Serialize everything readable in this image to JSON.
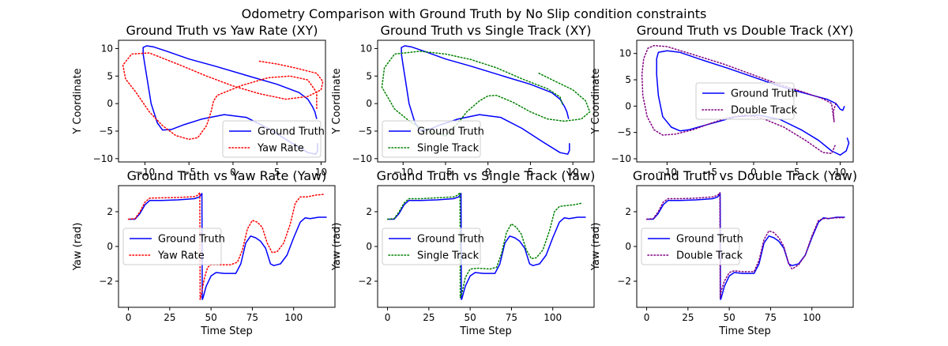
{
  "figure": {
    "title": "Odometry Comparison with Ground Truth by No Slip condition constraints"
  },
  "chart_data": [
    {
      "type": "line",
      "title": "Ground Truth vs Yaw Rate (XY)",
      "xlabel": "",
      "ylabel": "Y Coordinate",
      "xlim": [
        -13,
        10.5
      ],
      "ylim": [
        -10.6,
        11.5
      ],
      "xticks": [
        -10,
        -5,
        0,
        5,
        10
      ],
      "yticks": [
        -10,
        -5,
        0,
        5,
        10
      ],
      "legend_position": "lower-right",
      "series": [
        {
          "name": "Ground Truth",
          "color": "#0000ff",
          "style": "solid",
          "x": [
            9.5,
            9.3,
            9.0,
            8.5,
            7.5,
            5.0,
            2.0,
            -2.0,
            -5.0,
            -7.5,
            -9.0,
            -9.8,
            -10.2,
            -10.2,
            -10.0,
            -9.7,
            -9.3,
            -8.6,
            -8.0,
            -7.0,
            -5.5,
            -3.5,
            -1.0,
            1.5,
            4.0,
            6.5,
            8.5,
            9.4,
            9.6,
            9.6
          ],
          "y": [
            -2.8,
            -1.5,
            -0.5,
            0.8,
            2.0,
            3.5,
            4.9,
            6.8,
            8.1,
            9.5,
            10.3,
            10.5,
            10.2,
            9.0,
            7.0,
            4.0,
            0.0,
            -3.5,
            -4.8,
            -4.7,
            -3.8,
            -2.8,
            -2.0,
            -2.5,
            -4.5,
            -7.0,
            -8.9,
            -9.2,
            -8.5,
            -7.2
          ]
        },
        {
          "name": "Yaw Rate",
          "color": "#ff0000",
          "style": "dotted",
          "x": [
            3.0,
            5.0,
            7.0,
            9.5,
            10.2,
            10.0,
            8.5,
            6.0,
            3.0,
            0.0,
            -3.0,
            -6.0,
            -9.5,
            -11.5,
            -12.5,
            -12.2,
            -11.0,
            -9.5,
            -8.0,
            -6.5,
            -5.0,
            -4.0,
            -3.0,
            -2.5,
            -2.2,
            -1.8,
            1.0,
            4.0,
            6.5,
            8.5,
            9.5,
            9.5
          ],
          "y": [
            7.7,
            7.2,
            6.5,
            5.5,
            4.0,
            2.5,
            1.3,
            0.8,
            1.8,
            3.2,
            5.0,
            7.0,
            9.2,
            9.0,
            7.0,
            4.5,
            2.0,
            -1.5,
            -4.0,
            -5.8,
            -6.5,
            -6.2,
            -4.0,
            -1.5,
            0.5,
            1.5,
            3.3,
            4.7,
            5.0,
            4.3,
            2.0,
            -1.0
          ]
        }
      ]
    },
    {
      "type": "line",
      "title": "Ground Truth vs Single Track (XY)",
      "xlabel": "",
      "ylabel": "Y Coordinate",
      "xlim": [
        -13,
        12.5
      ],
      "ylim": [
        -10.6,
        11.5
      ],
      "xticks": [
        -10,
        -5,
        0,
        5,
        10
      ],
      "yticks": [
        -10,
        -5,
        0,
        5,
        10
      ],
      "legend_position": "lower-left",
      "series": [
        {
          "name": "Ground Truth",
          "color": "#0000ff",
          "style": "solid",
          "x": [
            9.5,
            9.3,
            9.0,
            8.5,
            7.5,
            5.0,
            2.0,
            -2.0,
            -5.0,
            -7.5,
            -9.0,
            -9.8,
            -10.2,
            -10.2,
            -10.0,
            -9.7,
            -9.3,
            -8.6,
            -8.0,
            -7.0,
            -5.5,
            -3.5,
            -1.0,
            1.5,
            4.0,
            6.5,
            8.5,
            9.4,
            9.6,
            9.6
          ],
          "y": [
            -2.8,
            -1.5,
            -0.5,
            0.8,
            2.0,
            3.5,
            4.9,
            6.8,
            8.1,
            9.5,
            10.3,
            10.5,
            10.2,
            9.0,
            7.0,
            4.0,
            0.0,
            -3.5,
            -4.8,
            -4.7,
            -3.8,
            -2.8,
            -2.0,
            -2.5,
            -4.5,
            -7.0,
            -8.9,
            -9.2,
            -8.5,
            -7.2
          ]
        },
        {
          "name": "Single Track",
          "color": "#008000",
          "style": "dotted",
          "x": [
            6.0,
            8.0,
            10.0,
            11.5,
            12.0,
            11.0,
            9.0,
            7.0,
            5.0,
            3.0,
            1.0,
            0.0,
            -1.0,
            -2.5,
            -3.5,
            -4.5,
            -5.0,
            -5.5,
            -7.0,
            -9.0,
            -11.0,
            -12.5,
            -12.2,
            -11.0,
            -8.0,
            -5.0,
            -2.0,
            1.0,
            4.0,
            7.0,
            8.5,
            8.8
          ],
          "y": [
            5.5,
            4.0,
            2.5,
            0.5,
            -1.5,
            -2.8,
            -3.2,
            -2.8,
            -1.5,
            0.2,
            1.5,
            1.4,
            0.5,
            -1.5,
            -3.5,
            -5.0,
            -6.0,
            -5.5,
            -5.0,
            -3.5,
            -1.0,
            3.0,
            6.5,
            9.0,
            9.5,
            9.0,
            8.0,
            6.5,
            4.5,
            2.7,
            1.2,
            -0.2
          ]
        }
      ]
    },
    {
      "type": "line",
      "title": "Ground Truth vs Double Track (XY)",
      "xlabel": "",
      "ylabel": "Y Coordinate",
      "xlim": [
        -13.5,
        11.5
      ],
      "ylim": [
        -10.6,
        12.5
      ],
      "xticks": [
        -10,
        -5,
        0,
        5,
        10
      ],
      "yticks": [
        -10,
        -5,
        0,
        5,
        10
      ],
      "legend_position": "center",
      "series": [
        {
          "name": "Ground Truth",
          "color": "#0000ff",
          "style": "solid",
          "x": [
            10.5,
            10.3,
            10.0,
            9.5,
            8.5,
            6.0,
            3.0,
            0.0,
            -3.0,
            -6.0,
            -8.5,
            -10.0,
            -11.0,
            -11.2,
            -11.2,
            -11.0,
            -10.5,
            -9.5,
            -8.5,
            -7.5,
            -6.0,
            -4.0,
            -2.0,
            0.5,
            3.0,
            5.5,
            7.5,
            9.0,
            10.0,
            10.7,
            11.0,
            10.8
          ],
          "y": [
            0.0,
            -0.8,
            -0.6,
            0.5,
            1.3,
            2.4,
            3.8,
            5.5,
            7.2,
            8.8,
            10.2,
            10.5,
            10.2,
            9.0,
            6.0,
            2.0,
            -2.0,
            -4.0,
            -4.7,
            -4.5,
            -3.8,
            -2.9,
            -2.0,
            -1.7,
            -2.5,
            -4.5,
            -6.5,
            -8.5,
            -9.3,
            -8.5,
            -7.0,
            -6.0
          ]
        },
        {
          "name": "Double Track",
          "color": "#800080",
          "style": "dotted",
          "x": [
            9.5,
            9.2,
            9.3,
            9.0,
            8.0,
            5.5,
            2.5,
            -0.5,
            -3.5,
            -7.0,
            -10.0,
            -11.5,
            -12.2,
            -12.7,
            -12.9,
            -12.8,
            -12.3,
            -11.5,
            -10.5,
            -9.0,
            -7.0,
            -5.0,
            -3.0,
            -1.0,
            1.0,
            3.5,
            6.0,
            8.0,
            9.0,
            9.4
          ],
          "y": [
            0.5,
            -1.0,
            -3.0,
            0.5,
            1.4,
            2.8,
            4.4,
            6.2,
            8.0,
            9.8,
            11.3,
            11.5,
            11.0,
            9.0,
            6.0,
            2.0,
            -2.0,
            -4.5,
            -5.5,
            -5.3,
            -4.5,
            -3.3,
            -2.2,
            -1.7,
            -2.3,
            -4.0,
            -6.5,
            -8.8,
            -9.0,
            -7.5
          ]
        }
      ]
    },
    {
      "type": "line",
      "title": "Ground Truth vs Yaw Rate (Yaw)",
      "xlabel": "Time Step",
      "ylabel": "Yaw (rad)",
      "xlim": [
        -6,
        125
      ],
      "ylim": [
        -3.5,
        3.5
      ],
      "xticks": [
        0,
        25,
        50,
        75,
        100
      ],
      "yticks": [
        -2,
        0,
        2
      ],
      "legend_position": "center-left",
      "series": [
        {
          "name": "Ground Truth",
          "color": "#0000ff",
          "style": "solid",
          "x": [
            0,
            4,
            7,
            10,
            13,
            20,
            30,
            40,
            43,
            44.5,
            44.7,
            45,
            47,
            50,
            53,
            58,
            65,
            68,
            71,
            74,
            77,
            80,
            83,
            86,
            88,
            92,
            96,
            100,
            104,
            107,
            110,
            115,
            120
          ],
          "y": [
            1.57,
            1.57,
            1.9,
            2.4,
            2.65,
            2.65,
            2.68,
            2.75,
            2.85,
            3.05,
            -3.05,
            -3.0,
            -2.3,
            -1.7,
            -1.5,
            -1.55,
            -1.55,
            -1.0,
            0.2,
            0.6,
            0.5,
            0.3,
            -0.1,
            -1.0,
            -1.1,
            -1.0,
            -0.5,
            0.5,
            1.4,
            1.65,
            1.6,
            1.68,
            1.68
          ]
        },
        {
          "name": "Yaw Rate",
          "color": "#ff0000",
          "style": "dotted",
          "x": [
            0,
            4,
            7,
            10,
            13,
            20,
            30,
            40,
            42,
            43.2,
            43.4,
            44,
            46,
            48,
            50,
            55,
            62,
            66,
            69,
            72,
            75,
            78,
            81,
            84,
            87,
            90,
            94,
            98,
            101,
            104,
            108,
            113,
            118
          ],
          "y": [
            1.57,
            1.6,
            2.0,
            2.55,
            2.78,
            2.8,
            2.82,
            2.87,
            2.95,
            3.1,
            -3.05,
            -2.8,
            -1.8,
            -1.2,
            -1.05,
            -1.05,
            -1.05,
            -0.9,
            -0.2,
            1.0,
            1.5,
            1.4,
            1.1,
            0.2,
            -0.35,
            -0.3,
            0.2,
            1.3,
            2.5,
            2.85,
            2.85,
            2.95,
            3.0
          ]
        }
      ]
    },
    {
      "type": "line",
      "title": "Ground Truth vs Single Track (Yaw)",
      "xlabel": "Time Step",
      "ylabel": "Yaw (rad)",
      "xlim": [
        -6,
        125
      ],
      "ylim": [
        -3.5,
        3.5
      ],
      "xticks": [
        0,
        25,
        50,
        75,
        100
      ],
      "yticks": [
        -2,
        0,
        2
      ],
      "legend_position": "center-left",
      "series": [
        {
          "name": "Ground Truth",
          "color": "#0000ff",
          "style": "solid",
          "x": [
            0,
            4,
            7,
            10,
            13,
            20,
            30,
            40,
            43,
            44.5,
            44.7,
            45,
            47,
            50,
            53,
            58,
            65,
            68,
            71,
            74,
            77,
            80,
            83,
            86,
            88,
            92,
            96,
            100,
            104,
            107,
            110,
            115,
            120
          ],
          "y": [
            1.57,
            1.57,
            1.9,
            2.4,
            2.65,
            2.65,
            2.68,
            2.75,
            2.85,
            3.05,
            -3.05,
            -3.0,
            -2.3,
            -1.7,
            -1.5,
            -1.55,
            -1.55,
            -1.0,
            0.2,
            0.6,
            0.5,
            0.3,
            -0.1,
            -1.0,
            -1.1,
            -1.0,
            -0.5,
            0.5,
            1.4,
            1.65,
            1.6,
            1.68,
            1.68
          ]
        },
        {
          "name": "Single Track",
          "color": "#008000",
          "style": "dotted",
          "x": [
            0,
            4,
            7,
            10,
            13,
            20,
            30,
            40,
            42.5,
            43.8,
            44.0,
            45,
            47,
            50,
            55,
            62,
            66,
            69,
            72,
            75,
            78,
            81,
            84,
            87,
            90,
            94,
            98,
            101,
            104,
            108,
            113,
            118
          ],
          "y": [
            1.57,
            1.6,
            2.0,
            2.5,
            2.75,
            2.75,
            2.8,
            2.85,
            2.95,
            3.1,
            -2.95,
            -2.7,
            -1.8,
            -1.3,
            -1.25,
            -1.3,
            -1.2,
            -0.4,
            0.8,
            1.3,
            1.1,
            0.7,
            -0.2,
            -0.7,
            -0.65,
            -0.2,
            0.9,
            2.0,
            2.3,
            2.35,
            2.4,
            2.5
          ]
        }
      ]
    },
    {
      "type": "line",
      "title": "Ground Truth vs Double Track (Yaw)",
      "xlabel": "Time Step",
      "ylabel": "Yaw (rad)",
      "xlim": [
        -6,
        125
      ],
      "ylim": [
        -3.5,
        3.5
      ],
      "xticks": [
        0,
        25,
        50,
        75,
        100
      ],
      "yticks": [
        -2,
        0,
        2
      ],
      "legend_position": "center-left",
      "series": [
        {
          "name": "Ground Truth",
          "color": "#0000ff",
          "style": "solid",
          "x": [
            0,
            4,
            7,
            10,
            13,
            20,
            30,
            40,
            43,
            44.5,
            44.7,
            45,
            47,
            50,
            53,
            58,
            65,
            68,
            71,
            74,
            77,
            80,
            83,
            86,
            88,
            92,
            96,
            100,
            104,
            107,
            110,
            115,
            120
          ],
          "y": [
            1.57,
            1.57,
            1.9,
            2.4,
            2.65,
            2.65,
            2.68,
            2.75,
            2.85,
            3.05,
            -3.05,
            -3.0,
            -2.3,
            -1.7,
            -1.5,
            -1.55,
            -1.55,
            -1.0,
            0.2,
            0.6,
            0.5,
            0.3,
            -0.1,
            -1.0,
            -1.1,
            -1.0,
            -0.5,
            0.5,
            1.4,
            1.65,
            1.6,
            1.68,
            1.68
          ]
        },
        {
          "name": "Double Track",
          "color": "#800080",
          "style": "dotted",
          "x": [
            0,
            4,
            7,
            10,
            13,
            20,
            30,
            40,
            43,
            44.3,
            44.5,
            45,
            47,
            50,
            53,
            58,
            65,
            68,
            71,
            74,
            77,
            80,
            83,
            86,
            88,
            92,
            96,
            100,
            104,
            107,
            110,
            115,
            120
          ],
          "y": [
            1.57,
            1.6,
            2.0,
            2.55,
            2.75,
            2.75,
            2.78,
            2.85,
            2.95,
            3.1,
            -2.95,
            -2.6,
            -2.0,
            -1.5,
            -1.4,
            -1.45,
            -1.45,
            -0.8,
            0.4,
            0.9,
            0.8,
            0.5,
            0.0,
            -1.0,
            -1.3,
            -1.05,
            -0.5,
            0.6,
            1.5,
            1.6,
            1.62,
            1.65,
            1.66
          ]
        }
      ]
    }
  ]
}
